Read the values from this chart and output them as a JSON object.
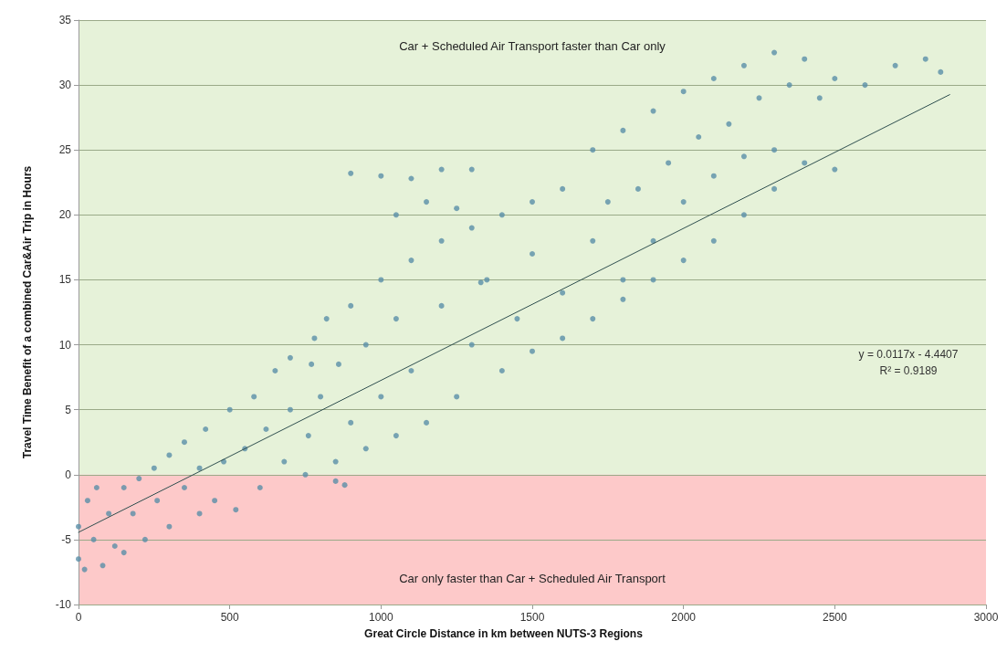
{
  "chart_data": {
    "type": "scatter",
    "xlabel": "Great Circle Distance in km between NUTS-3 Regions",
    "ylabel": "Travel Time Benefit of a combined Car&Air Trip in Hours",
    "xlim": [
      0,
      3000
    ],
    "xticks": [
      0,
      500,
      1000,
      1500,
      2000,
      2500,
      3000
    ],
    "ylim": [
      -10,
      35
    ],
    "yticks": [
      -10,
      -5,
      0,
      5,
      10,
      15,
      20,
      25,
      30,
      35
    ],
    "grid": "y",
    "marker": "circle",
    "bands": [
      {
        "axis": "y",
        "from": 0,
        "to": 35,
        "label": "Car + Scheduled Air Transport faster than Car only",
        "color": "#e6f2d9"
      },
      {
        "axis": "y",
        "from": -10,
        "to": 0,
        "label": "Car only faster than Car + Scheduled Air Transport",
        "color": "#fdc9c9"
      }
    ],
    "annotations": [
      "y = 0.0117x - 4.4407",
      "R² = 0.9189"
    ],
    "series": [
      {
        "color": "#5a8fa8",
        "x": [
          0,
          0,
          20,
          30,
          50,
          60,
          80,
          100,
          120,
          150,
          150,
          180,
          200,
          220,
          250,
          260,
          300,
          300,
          350,
          350,
          400,
          400,
          420,
          450,
          480,
          500,
          520,
          550,
          580,
          600,
          620,
          650,
          680,
          700,
          700,
          750,
          760,
          780,
          800,
          820,
          850,
          860,
          880,
          900,
          900,
          950,
          950,
          1000,
          1000,
          1050,
          1050,
          1100,
          1100,
          1150,
          1200,
          1200,
          1250,
          1300,
          1300,
          1350,
          1400,
          1400,
          1450,
          1500,
          1500,
          1500,
          1600,
          1600,
          1600,
          1700,
          1700,
          1700,
          1750,
          1800,
          1800,
          1800,
          1850,
          1900,
          1900,
          1900,
          1950,
          2000,
          2000,
          2000,
          2050,
          2100,
          2100,
          2100,
          2150,
          2200,
          2200,
          2200,
          2250,
          2300,
          2300,
          2300,
          2350,
          2400,
          2400,
          2450,
          2500,
          2500,
          2600,
          2700,
          2800,
          2850,
          900,
          1000,
          1100,
          1200,
          1300,
          1050,
          1150,
          1250,
          1330,
          770,
          850
        ],
        "values": [
          -4,
          -6.5,
          -7.3,
          -2,
          -5,
          -1,
          -7,
          -3,
          -5.5,
          -1,
          -6,
          -3,
          -0.3,
          -5,
          0.5,
          -2,
          -4,
          1.5,
          -1,
          2.5,
          -3,
          0.5,
          3.5,
          -2,
          1,
          5,
          -2.7,
          2,
          6,
          -1,
          3.5,
          8,
          1,
          5,
          9,
          0,
          3,
          10.5,
          6,
          12,
          1,
          8.5,
          -0.8,
          13,
          4,
          10,
          2,
          15,
          6,
          12,
          3,
          16.5,
          8,
          4,
          18,
          13,
          6,
          19,
          10,
          15,
          20,
          8,
          12,
          21,
          17,
          9.5,
          22,
          14,
          10.5,
          25,
          18,
          12,
          21,
          26.5,
          15,
          13.5,
          22,
          28,
          18,
          15,
          24,
          29.5,
          21,
          16.5,
          26,
          30.5,
          23,
          18,
          27,
          31.5,
          24.5,
          20,
          29,
          32.5,
          25,
          22,
          30,
          32,
          24,
          29,
          30.5,
          23.5,
          30,
          31.5,
          32,
          31,
          23.2,
          23,
          22.8,
          23.5,
          23.5,
          20,
          21,
          20.5,
          14.8,
          8.5,
          -0.5
        ]
      },
      {
        "type": "line",
        "color": "#2f4f4f",
        "line_style": "solid",
        "marker": "none",
        "x": [
          0,
          2880
        ],
        "values": [
          -4.44,
          29.26
        ]
      }
    ]
  }
}
